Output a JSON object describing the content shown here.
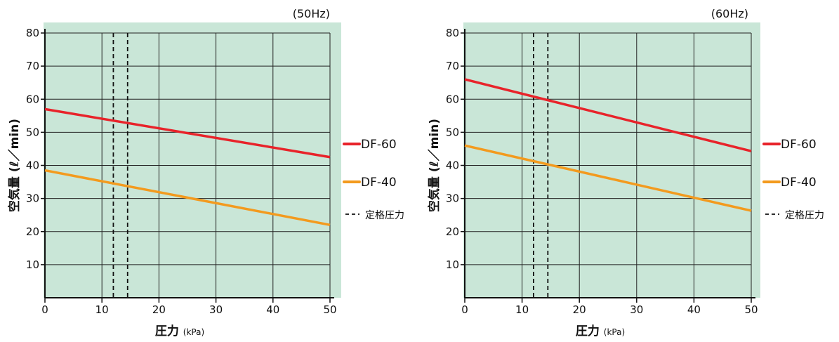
{
  "chart_data": [
    {
      "type": "line",
      "title": "(50Hz)",
      "xlabel": "圧力",
      "xlabel_unit": "(kPa)",
      "ylabel": "空気量 (ℓ／min)",
      "xlim": [
        0,
        50
      ],
      "ylim": [
        0,
        80
      ],
      "x_ticks": [
        "0",
        "10",
        "20",
        "30",
        "40",
        "50"
      ],
      "y_ticks": [
        "10",
        "20",
        "30",
        "40",
        "50",
        "60",
        "70",
        "80"
      ],
      "grid": true,
      "background_color": "#c9e6d7",
      "series": [
        {
          "name": "DF-60",
          "color": "#e8232a",
          "x": [
            0,
            50
          ],
          "y": [
            57,
            42.5
          ]
        },
        {
          "name": "DF-40",
          "color": "#f39a1e",
          "x": [
            0,
            50
          ],
          "y": [
            38.5,
            22
          ]
        }
      ],
      "rated_pressure_lines": [
        12,
        14.5
      ]
    },
    {
      "type": "line",
      "title": "(60Hz)",
      "xlabel": "圧力",
      "xlabel_unit": "(kPa)",
      "ylabel": "空気量 (ℓ／min)",
      "xlim": [
        0,
        50
      ],
      "ylim": [
        0,
        80
      ],
      "x_ticks": [
        "0",
        "10",
        "20",
        "30",
        "40",
        "50"
      ],
      "y_ticks": [
        "10",
        "20",
        "30",
        "40",
        "50",
        "60",
        "70",
        "80"
      ],
      "grid": true,
      "background_color": "#c9e6d7",
      "series": [
        {
          "name": "DF-60",
          "color": "#e8232a",
          "x": [
            0,
            50
          ],
          "y": [
            66,
            44.3
          ]
        },
        {
          "name": "DF-40",
          "color": "#f39a1e",
          "x": [
            0,
            50
          ],
          "y": [
            46,
            26.3
          ]
        }
      ],
      "rated_pressure_lines": [
        12,
        14.5
      ]
    }
  ],
  "legend": [
    {
      "label": "DF-60",
      "style": "solid",
      "color": "#e8232a"
    },
    {
      "label": "DF-40",
      "style": "solid",
      "color": "#f39a1e"
    },
    {
      "label": "定格圧力",
      "style": "dashed",
      "color": "#111111"
    }
  ]
}
